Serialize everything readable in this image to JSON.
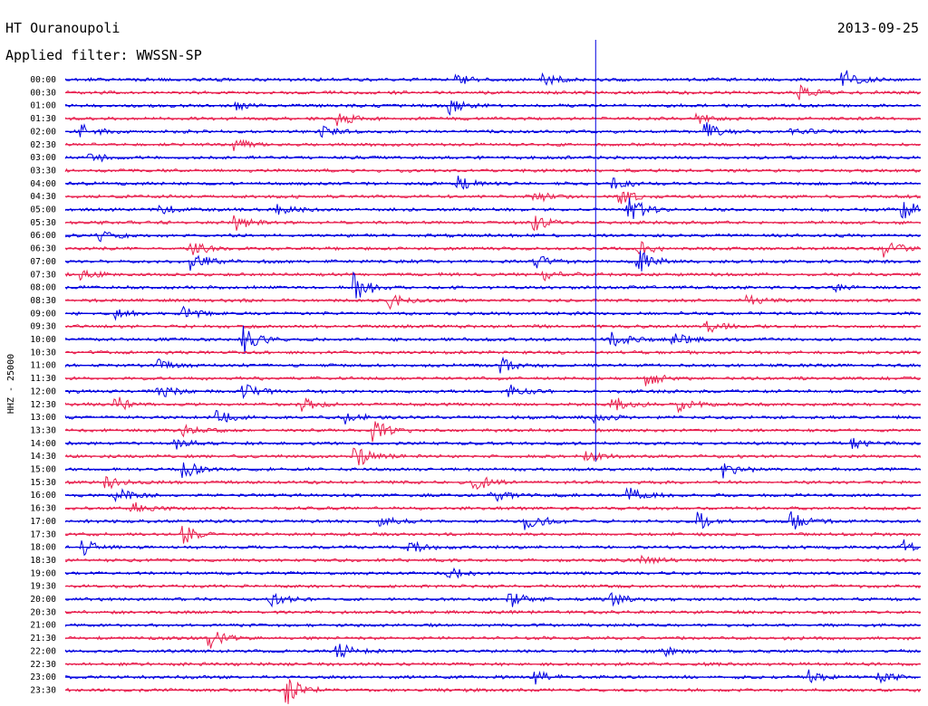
{
  "header": {
    "station": "HT Ouranoupoli",
    "date": "2013-09-25",
    "filter": "Applied filter: WWSSN-SP"
  },
  "chart_data": {
    "type": "line",
    "channel_label": "HHZ - 25000",
    "row_labels": [
      "00:00",
      "00:30",
      "01:00",
      "01:30",
      "02:00",
      "02:30",
      "03:00",
      "03:30",
      "04:00",
      "04:30",
      "05:00",
      "05:30",
      "06:00",
      "06:30",
      "07:00",
      "07:30",
      "08:00",
      "08:30",
      "09:00",
      "09:30",
      "10:00",
      "10:30",
      "11:00",
      "11:30",
      "12:00",
      "12:30",
      "13:00",
      "13:30",
      "14:00",
      "14:30",
      "15:00",
      "15:30",
      "16:00",
      "16:30",
      "17:00",
      "17:30",
      "18:00",
      "18:30",
      "19:00",
      "19:30",
      "20:00",
      "20:30",
      "21:00",
      "21:30",
      "22:00",
      "22:30",
      "23:00",
      "23:30"
    ],
    "colors": [
      "#0000e0",
      "#e8204f"
    ],
    "events": [
      {
        "row": "00:00",
        "t": 0.46,
        "amp": 0.6
      },
      {
        "row": "00:00",
        "t": 0.56,
        "amp": 0.7
      },
      {
        "row": "00:00",
        "t": 0.91,
        "amp": 1.3
      },
      {
        "row": "00:30",
        "t": 0.86,
        "amp": 0.8
      },
      {
        "row": "01:00",
        "t": 0.45,
        "amp": 1.1
      },
      {
        "row": "01:00",
        "t": 0.2,
        "amp": 0.5
      },
      {
        "row": "01:30",
        "t": 0.32,
        "amp": 0.9
      },
      {
        "row": "01:30",
        "t": 0.74,
        "amp": 0.5
      },
      {
        "row": "02:00",
        "t": 0.02,
        "amp": 0.9
      },
      {
        "row": "02:00",
        "t": 0.3,
        "amp": 0.6
      },
      {
        "row": "02:00",
        "t": 0.75,
        "amp": 1.0
      },
      {
        "row": "02:00",
        "t": 0.85,
        "amp": 0.6
      },
      {
        "row": "02:30",
        "t": 0.2,
        "amp": 0.6
      },
      {
        "row": "03:00",
        "t": 0.03,
        "amp": 0.6
      },
      {
        "row": "04:00",
        "t": 0.46,
        "amp": 0.8
      },
      {
        "row": "04:00",
        "t": 0.64,
        "amp": 0.7
      },
      {
        "row": "04:30",
        "t": 0.55,
        "amp": 0.7
      },
      {
        "row": "04:30",
        "t": 0.65,
        "amp": 0.8
      },
      {
        "row": "05:00",
        "t": 0.11,
        "amp": 0.7
      },
      {
        "row": "05:00",
        "t": 0.25,
        "amp": 0.6
      },
      {
        "row": "05:00",
        "t": 0.66,
        "amp": 1.8
      },
      {
        "row": "05:00",
        "t": 0.98,
        "amp": 1.2
      },
      {
        "row": "05:30",
        "t": 0.2,
        "amp": 0.9
      },
      {
        "row": "05:30",
        "t": 0.55,
        "amp": 0.8
      },
      {
        "row": "06:00",
        "t": 0.04,
        "amp": 0.8
      },
      {
        "row": "06:30",
        "t": 0.15,
        "amp": 0.8
      },
      {
        "row": "06:30",
        "t": 0.67,
        "amp": 0.9
      },
      {
        "row": "06:30",
        "t": 0.96,
        "amp": 1.0
      },
      {
        "row": "07:00",
        "t": 0.15,
        "amp": 1.0
      },
      {
        "row": "07:00",
        "t": 0.55,
        "amp": 0.8
      },
      {
        "row": "07:00",
        "t": 0.67,
        "amp": 1.5
      },
      {
        "row": "07:30",
        "t": 0.02,
        "amp": 0.7
      },
      {
        "row": "07:30",
        "t": 0.56,
        "amp": 0.6
      },
      {
        "row": "08:00",
        "t": 0.34,
        "amp": 1.8
      },
      {
        "row": "08:00",
        "t": 0.9,
        "amp": 0.5
      },
      {
        "row": "08:30",
        "t": 0.38,
        "amp": 1.0
      },
      {
        "row": "08:30",
        "t": 0.8,
        "amp": 0.6
      },
      {
        "row": "09:00",
        "t": 0.06,
        "amp": 0.6
      },
      {
        "row": "09:00",
        "t": 0.14,
        "amp": 0.7
      },
      {
        "row": "09:30",
        "t": 0.75,
        "amp": 0.8
      },
      {
        "row": "10:00",
        "t": 0.21,
        "amp": 1.6
      },
      {
        "row": "10:00",
        "t": 0.64,
        "amp": 1.2
      },
      {
        "row": "10:00",
        "t": 0.71,
        "amp": 1.0
      },
      {
        "row": "11:00",
        "t": 0.51,
        "amp": 0.9
      },
      {
        "row": "11:00",
        "t": 0.11,
        "amp": 0.6
      },
      {
        "row": "11:30",
        "t": 0.68,
        "amp": 0.8
      },
      {
        "row": "12:00",
        "t": 0.11,
        "amp": 0.8
      },
      {
        "row": "12:00",
        "t": 0.21,
        "amp": 1.0
      },
      {
        "row": "12:00",
        "t": 0.52,
        "amp": 0.7
      },
      {
        "row": "12:30",
        "t": 0.06,
        "amp": 1.0
      },
      {
        "row": "12:30",
        "t": 0.28,
        "amp": 0.7
      },
      {
        "row": "12:30",
        "t": 0.64,
        "amp": 1.0
      },
      {
        "row": "12:30",
        "t": 0.72,
        "amp": 0.8
      },
      {
        "row": "13:00",
        "t": 0.18,
        "amp": 0.9
      },
      {
        "row": "13:00",
        "t": 0.33,
        "amp": 0.7
      },
      {
        "row": "13:00",
        "t": 0.62,
        "amp": 0.6
      },
      {
        "row": "13:30",
        "t": 0.36,
        "amp": 1.5
      },
      {
        "row": "13:30",
        "t": 0.14,
        "amp": 0.6
      },
      {
        "row": "14:00",
        "t": 0.13,
        "amp": 0.6
      },
      {
        "row": "14:00",
        "t": 0.92,
        "amp": 0.7
      },
      {
        "row": "14:30",
        "t": 0.34,
        "amp": 1.5
      },
      {
        "row": "14:30",
        "t": 0.61,
        "amp": 0.6
      },
      {
        "row": "15:00",
        "t": 0.14,
        "amp": 1.0
      },
      {
        "row": "15:00",
        "t": 0.77,
        "amp": 1.0
      },
      {
        "row": "15:30",
        "t": 0.05,
        "amp": 0.7
      },
      {
        "row": "15:30",
        "t": 0.48,
        "amp": 1.1
      },
      {
        "row": "16:00",
        "t": 0.06,
        "amp": 1.0
      },
      {
        "row": "16:00",
        "t": 0.5,
        "amp": 0.9
      },
      {
        "row": "16:00",
        "t": 0.66,
        "amp": 0.8
      },
      {
        "row": "16:30",
        "t": 0.08,
        "amp": 0.7
      },
      {
        "row": "17:00",
        "t": 0.37,
        "amp": 0.7
      },
      {
        "row": "17:00",
        "t": 0.54,
        "amp": 1.2
      },
      {
        "row": "17:00",
        "t": 0.74,
        "amp": 1.1
      },
      {
        "row": "17:00",
        "t": 0.85,
        "amp": 1.2
      },
      {
        "row": "17:30",
        "t": 0.14,
        "amp": 1.0
      },
      {
        "row": "18:00",
        "t": 0.02,
        "amp": 1.0
      },
      {
        "row": "18:00",
        "t": 0.4,
        "amp": 0.9
      },
      {
        "row": "18:00",
        "t": 0.98,
        "amp": 0.9
      },
      {
        "row": "18:30",
        "t": 0.67,
        "amp": 0.6
      },
      {
        "row": "19:00",
        "t": 0.45,
        "amp": 0.7
      },
      {
        "row": "20:00",
        "t": 0.24,
        "amp": 0.8
      },
      {
        "row": "20:00",
        "t": 0.52,
        "amp": 1.0
      },
      {
        "row": "20:00",
        "t": 0.64,
        "amp": 0.8
      },
      {
        "row": "21:30",
        "t": 0.17,
        "amp": 1.2
      },
      {
        "row": "22:00",
        "t": 0.32,
        "amp": 1.0
      },
      {
        "row": "22:00",
        "t": 0.7,
        "amp": 0.6
      },
      {
        "row": "23:00",
        "t": 0.55,
        "amp": 0.8
      },
      {
        "row": "23:00",
        "t": 0.87,
        "amp": 0.9
      },
      {
        "row": "23:00",
        "t": 0.95,
        "amp": 0.8
      },
      {
        "row": "23:30",
        "t": 0.26,
        "amp": 1.6
      }
    ],
    "spike": {
      "t": 0.62,
      "from_row": "00:00",
      "to_row": "14:30"
    }
  }
}
